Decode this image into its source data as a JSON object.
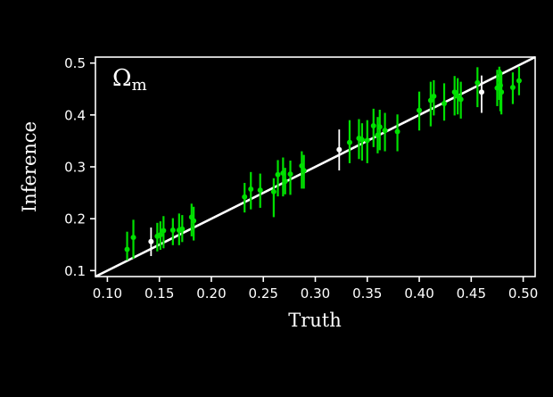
{
  "figure": {
    "background": "#000000"
  },
  "chart_data": {
    "type": "scatter",
    "title": "",
    "annotation": {
      "symbol": "Ω",
      "subscript": "m"
    },
    "xlabel": "Truth",
    "ylabel": "Inference",
    "xlim": [
      0.0885,
      0.5115
    ],
    "ylim": [
      0.0885,
      0.5115
    ],
    "xticks": [
      0.1,
      0.15,
      0.2,
      0.25,
      0.3,
      0.35,
      0.4,
      0.45,
      0.5
    ],
    "xtick_labels": [
      "0.10",
      "0.15",
      "0.20",
      "0.25",
      "0.30",
      "0.35",
      "0.40",
      "0.45",
      "0.50"
    ],
    "yticks": [
      0.1,
      0.2,
      0.3,
      0.4,
      0.5
    ],
    "ytick_labels": [
      "0.1",
      "0.2",
      "0.3",
      "0.4",
      "0.5"
    ],
    "grid": false,
    "legend": null,
    "identity_line": {
      "x0": 0.0885,
      "y0": 0.0885,
      "x1": 0.5115,
      "y1": 0.5115,
      "color": "#ffffff"
    },
    "colors": {
      "axes": "#ffffff",
      "background": "#000000",
      "green_series": "#00e100",
      "white_series": "#ffffff"
    },
    "point_format": [
      "x",
      "y",
      "err_lo",
      "err_hi"
    ],
    "series": [
      {
        "name": "green-points",
        "color": "#00e100",
        "points": [
          [
            0.119,
            0.141,
            0.021,
            0.034
          ],
          [
            0.125,
            0.164,
            0.041,
            0.034
          ],
          [
            0.148,
            0.166,
            0.029,
            0.026
          ],
          [
            0.151,
            0.169,
            0.029,
            0.026
          ],
          [
            0.154,
            0.177,
            0.034,
            0.028
          ],
          [
            0.163,
            0.178,
            0.029,
            0.023
          ],
          [
            0.169,
            0.178,
            0.029,
            0.032
          ],
          [
            0.172,
            0.18,
            0.025,
            0.027
          ],
          [
            0.181,
            0.203,
            0.037,
            0.026
          ],
          [
            0.183,
            0.196,
            0.038,
            0.027
          ],
          [
            0.232,
            0.242,
            0.03,
            0.027
          ],
          [
            0.238,
            0.257,
            0.039,
            0.033
          ],
          [
            0.247,
            0.255,
            0.034,
            0.032
          ],
          [
            0.26,
            0.252,
            0.049,
            0.026
          ],
          [
            0.264,
            0.285,
            0.042,
            0.028
          ],
          [
            0.269,
            0.288,
            0.045,
            0.03
          ],
          [
            0.271,
            0.272,
            0.025,
            0.026
          ],
          [
            0.276,
            0.286,
            0.04,
            0.026
          ],
          [
            0.287,
            0.302,
            0.044,
            0.028
          ],
          [
            0.289,
            0.293,
            0.035,
            0.03
          ],
          [
            0.333,
            0.347,
            0.04,
            0.043
          ],
          [
            0.342,
            0.355,
            0.04,
            0.037
          ],
          [
            0.345,
            0.352,
            0.04,
            0.032
          ],
          [
            0.35,
            0.351,
            0.044,
            0.039
          ],
          [
            0.356,
            0.379,
            0.041,
            0.033
          ],
          [
            0.36,
            0.361,
            0.035,
            0.035
          ],
          [
            0.362,
            0.377,
            0.045,
            0.033
          ],
          [
            0.367,
            0.37,
            0.04,
            0.034
          ],
          [
            0.379,
            0.368,
            0.038,
            0.033
          ],
          [
            0.4,
            0.409,
            0.039,
            0.036
          ],
          [
            0.411,
            0.428,
            0.05,
            0.036
          ],
          [
            0.414,
            0.436,
            0.037,
            0.031
          ],
          [
            0.424,
            0.422,
            0.033,
            0.039
          ],
          [
            0.434,
            0.444,
            0.045,
            0.031
          ],
          [
            0.437,
            0.436,
            0.035,
            0.035
          ],
          [
            0.44,
            0.43,
            0.037,
            0.034
          ],
          [
            0.456,
            0.462,
            0.047,
            0.03
          ],
          [
            0.475,
            0.452,
            0.035,
            0.035
          ],
          [
            0.477,
            0.469,
            0.04,
            0.024
          ],
          [
            0.478,
            0.457,
            0.05,
            0.03
          ],
          [
            0.479,
            0.444,
            0.043,
            0.04
          ],
          [
            0.49,
            0.453,
            0.032,
            0.029
          ],
          [
            0.496,
            0.466,
            0.028,
            0.027
          ]
        ]
      },
      {
        "name": "white-points",
        "color": "#ffffff",
        "points": [
          [
            0.142,
            0.156,
            0.028,
            0.027
          ],
          [
            0.323,
            0.333,
            0.04,
            0.039
          ],
          [
            0.46,
            0.444,
            0.04,
            0.032
          ]
        ]
      }
    ]
  }
}
